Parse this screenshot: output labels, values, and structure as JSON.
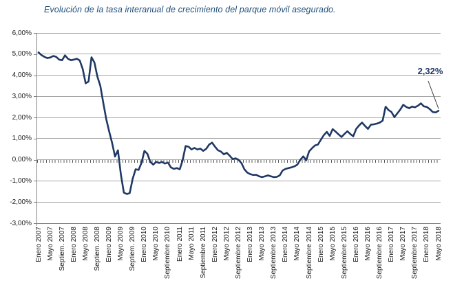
{
  "colors": {
    "line": "#1F3864",
    "title": "#1F4E79",
    "grid": "#A6A6A6",
    "axis": "#808080",
    "tick": "#595959",
    "annotation": "#1F3864",
    "label": "#1a1a1a"
  },
  "chart_data": {
    "type": "line",
    "title": "Evolución de la tasa interanual de crecimiento del parque móvil asegurado.",
    "xlabel": "",
    "ylabel": "",
    "ylim": [
      -3,
      6
    ],
    "y_step": 1,
    "grid": true,
    "legend": false,
    "smoothed": true,
    "y_tick_labels": [
      "6,00%",
      "5,00%",
      "4,00%",
      "3,00%",
      "2,00%",
      "1,00%",
      "0,00%",
      "-1,00%",
      "-2,00%",
      "-3,00%"
    ],
    "x_tick_labels": [
      "Enero 2007",
      "Mayo 2007",
      "Septiem. 2007",
      "Enero 2008",
      "Mayo 2008",
      "Septiem. 2008",
      "Enero 2009",
      "Mayo 2009",
      "Septiem. 2009",
      "Enero 2010",
      "Mayo 2010",
      "Septiembre 2010",
      "Enero 2011",
      "Mayo 2011",
      "Septiembre 2011",
      "Enero 2012",
      "Mayo 2012",
      "Septiembre 2012",
      "Enero 2013",
      "Mayo 2013",
      "Septiembre 2013",
      "Enero 2014",
      "Mayo 2014",
      "Septiembre 2014",
      "Enero 2015",
      "Mayo 2015",
      "Septiembre 2015",
      "Enero 2016",
      "Mayo 2016",
      "Septiembre 2016",
      "Enero 2017",
      "Mayo 2017",
      "Septiembre 2017",
      "Enero 2018",
      "Mayo 2018"
    ],
    "annotation": {
      "text": "2,32%",
      "x": "2018-05",
      "y": 2.32
    },
    "x": [
      "2007-01",
      "2007-02",
      "2007-03",
      "2007-04",
      "2007-05",
      "2007-06",
      "2007-07",
      "2007-08",
      "2007-09",
      "2007-10",
      "2007-11",
      "2007-12",
      "2008-01",
      "2008-02",
      "2008-03",
      "2008-04",
      "2008-05",
      "2008-06",
      "2008-07",
      "2008-08",
      "2008-09",
      "2008-10",
      "2008-11",
      "2008-12",
      "2009-01",
      "2009-02",
      "2009-03",
      "2009-04",
      "2009-05",
      "2009-06",
      "2009-07",
      "2009-08",
      "2009-09",
      "2009-10",
      "2009-11",
      "2009-12",
      "2010-01",
      "2010-02",
      "2010-03",
      "2010-04",
      "2010-05",
      "2010-06",
      "2010-07",
      "2010-08",
      "2010-09",
      "2010-10",
      "2010-11",
      "2010-12",
      "2011-01",
      "2011-02",
      "2011-03",
      "2011-04",
      "2011-05",
      "2011-06",
      "2011-07",
      "2011-08",
      "2011-09",
      "2011-10",
      "2011-11",
      "2011-12",
      "2012-01",
      "2012-02",
      "2012-03",
      "2012-04",
      "2012-05",
      "2012-06",
      "2012-07",
      "2012-08",
      "2012-09",
      "2012-10",
      "2012-11",
      "2012-12",
      "2013-01",
      "2013-02",
      "2013-03",
      "2013-04",
      "2013-05",
      "2013-06",
      "2013-07",
      "2013-08",
      "2013-09",
      "2013-10",
      "2013-11",
      "2013-12",
      "2014-01",
      "2014-02",
      "2014-03",
      "2014-04",
      "2014-05",
      "2014-06",
      "2014-07",
      "2014-08",
      "2014-09",
      "2014-10",
      "2014-11",
      "2014-12",
      "2015-01",
      "2015-02",
      "2015-03",
      "2015-04",
      "2015-05",
      "2015-06",
      "2015-07",
      "2015-08",
      "2015-09",
      "2015-10",
      "2015-11",
      "2015-12",
      "2016-01",
      "2016-02",
      "2016-03",
      "2016-04",
      "2016-05",
      "2016-06",
      "2016-07",
      "2016-08",
      "2016-09",
      "2016-10",
      "2016-11",
      "2016-12",
      "2017-01",
      "2017-02",
      "2017-03",
      "2017-04",
      "2017-05",
      "2017-06",
      "2017-07",
      "2017-08",
      "2017-09",
      "2017-10",
      "2017-11",
      "2017-12",
      "2018-01",
      "2018-02",
      "2018-03",
      "2018-04",
      "2018-05"
    ],
    "series": [
      {
        "name": "Tasa interanual de crecimiento del parque móvil asegurado",
        "values": [
          5.08,
          4.95,
          4.87,
          4.81,
          4.84,
          4.91,
          4.87,
          4.74,
          4.71,
          4.94,
          4.78,
          4.71,
          4.74,
          4.78,
          4.7,
          4.3,
          3.62,
          3.7,
          4.85,
          4.6,
          3.94,
          3.5,
          2.7,
          1.93,
          1.35,
          0.8,
          0.15,
          0.45,
          -0.7,
          -1.55,
          -1.62,
          -1.58,
          -0.9,
          -0.45,
          -0.48,
          -0.15,
          0.42,
          0.28,
          -0.1,
          -0.23,
          -0.1,
          -0.15,
          -0.1,
          -0.18,
          -0.13,
          -0.36,
          -0.43,
          -0.39,
          -0.45,
          -0.02,
          0.65,
          0.62,
          0.49,
          0.56,
          0.49,
          0.53,
          0.42,
          0.52,
          0.72,
          0.81,
          0.62,
          0.45,
          0.39,
          0.26,
          0.33,
          0.19,
          0.03,
          0.07,
          0.0,
          -0.16,
          -0.45,
          -0.61,
          -0.68,
          -0.72,
          -0.71,
          -0.78,
          -0.82,
          -0.78,
          -0.74,
          -0.78,
          -0.82,
          -0.81,
          -0.74,
          -0.5,
          -0.43,
          -0.39,
          -0.36,
          -0.31,
          -0.23,
          0.0,
          0.16,
          -0.02,
          0.4,
          0.55,
          0.68,
          0.72,
          0.95,
          1.17,
          1.32,
          1.13,
          1.45,
          1.33,
          1.2,
          1.08,
          1.22,
          1.35,
          1.22,
          1.11,
          1.46,
          1.63,
          1.76,
          1.6,
          1.46,
          1.66,
          1.68,
          1.71,
          1.76,
          1.85,
          2.51,
          2.35,
          2.26,
          2.02,
          2.2,
          2.38,
          2.6,
          2.5,
          2.44,
          2.52,
          2.48,
          2.56,
          2.67,
          2.53,
          2.5,
          2.4,
          2.26,
          2.24,
          2.32
        ]
      }
    ]
  }
}
